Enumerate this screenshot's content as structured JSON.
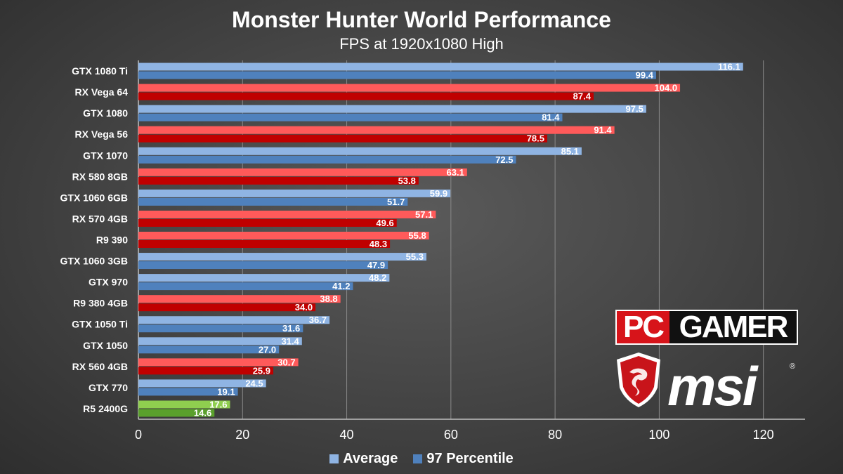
{
  "title": "Monster Hunter World Performance",
  "subtitle": "FPS at 1920x1080 High",
  "logos": {
    "pc": "PC",
    "gamer": "GAMER",
    "msi": "msi",
    "reg": "®"
  },
  "colors": {
    "nvidia_avg": "#8fb4e3",
    "nvidia_p97": "#4f81bd",
    "amd_avg": "#ff5a5a",
    "amd_p97": "#c00000",
    "apu_avg": "#8fce4f",
    "apu_p97": "#5aa02c",
    "grid": "#8a8a8a",
    "text": "#ffffff"
  },
  "chart_data": {
    "type": "bar",
    "orientation": "horizontal",
    "title": "Monster Hunter World Performance",
    "subtitle": "FPS at 1920x1080 High",
    "categories": [
      "GTX 1080 Ti",
      "RX Vega 64",
      "GTX 1080",
      "RX Vega 56",
      "GTX 1070",
      "RX 580 8GB",
      "GTX 1060 6GB",
      "RX 570 4GB",
      "R9 390",
      "GTX 1060 3GB",
      "GTX 970",
      "R9 380 4GB",
      "GTX 1050 Ti",
      "GTX 1050",
      "RX 560 4GB",
      "GTX 770",
      "R5 2400G"
    ],
    "vendor": [
      "nvidia",
      "amd",
      "nvidia",
      "amd",
      "nvidia",
      "amd",
      "nvidia",
      "amd",
      "amd",
      "nvidia",
      "nvidia",
      "amd",
      "nvidia",
      "nvidia",
      "amd",
      "nvidia",
      "apu"
    ],
    "series": [
      {
        "name": "Average",
        "values": [
          116.1,
          104.0,
          97.5,
          91.4,
          85.1,
          63.1,
          59.9,
          57.1,
          55.8,
          55.3,
          48.2,
          38.8,
          36.7,
          31.4,
          30.7,
          24.5,
          17.6
        ]
      },
      {
        "name": "97 Percentile",
        "values": [
          99.4,
          87.4,
          81.4,
          78.5,
          72.5,
          53.8,
          51.7,
          49.6,
          48.3,
          47.9,
          41.2,
          34.0,
          31.6,
          27.0,
          25.9,
          19.1,
          14.6
        ]
      }
    ],
    "xlim": [
      0,
      128
    ],
    "xticks": [
      0,
      20,
      40,
      60,
      80,
      100,
      120
    ],
    "grid": true,
    "legend": "bottom"
  }
}
